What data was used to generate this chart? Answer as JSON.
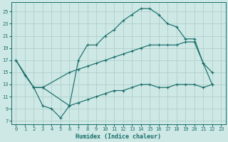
{
  "xlabel": "Humidex (Indice chaleur)",
  "bg_color": "#cde8e5",
  "grid_color": "#b0d0cd",
  "line_color": "#1a6e6a",
  "xlim": [
    -0.5,
    23.5
  ],
  "ylim": [
    6.5,
    26.5
  ],
  "yticks": [
    7,
    9,
    11,
    13,
    15,
    17,
    19,
    21,
    23,
    25
  ],
  "xticks": [
    0,
    1,
    2,
    3,
    4,
    5,
    6,
    7,
    8,
    9,
    10,
    11,
    12,
    13,
    14,
    15,
    16,
    17,
    18,
    19,
    20,
    21,
    22,
    23
  ],
  "line1_x": [
    0,
    1,
    2,
    3,
    4,
    5,
    6,
    7,
    8,
    9,
    10,
    11,
    12,
    13,
    14,
    15,
    16,
    17,
    18,
    19,
    20,
    21,
    22
  ],
  "line1_y": [
    17,
    14.5,
    12.5,
    9.5,
    9.0,
    7.5,
    9.5,
    17,
    19.5,
    19.5,
    21.0,
    22.0,
    23.5,
    24.5,
    25.5,
    25.5,
    24.5,
    23.0,
    22.5,
    20.5,
    20.5,
    16.5,
    15.0
  ],
  "line2_x": [
    0,
    2,
    3,
    6,
    7,
    8,
    9,
    10,
    11,
    12,
    13,
    14,
    15,
    16,
    17,
    18,
    19,
    20,
    21,
    22
  ],
  "line2_y": [
    17,
    12.5,
    12.5,
    15.0,
    15.5,
    16.0,
    16.5,
    17.0,
    17.5,
    18.0,
    18.5,
    19.0,
    19.5,
    19.5,
    19.5,
    19.5,
    20.0,
    20.0,
    16.5,
    13.0
  ],
  "line3_x": [
    2,
    3,
    6,
    7,
    8,
    9,
    10,
    11,
    12,
    13,
    14,
    15,
    16,
    17,
    18,
    19,
    20,
    21,
    22
  ],
  "line3_y": [
    12.5,
    12.5,
    9.5,
    10.0,
    10.5,
    11.0,
    11.5,
    12.0,
    12.0,
    12.5,
    13.0,
    13.0,
    12.5,
    12.5,
    13.0,
    13.0,
    13.0,
    12.5,
    13.0
  ]
}
